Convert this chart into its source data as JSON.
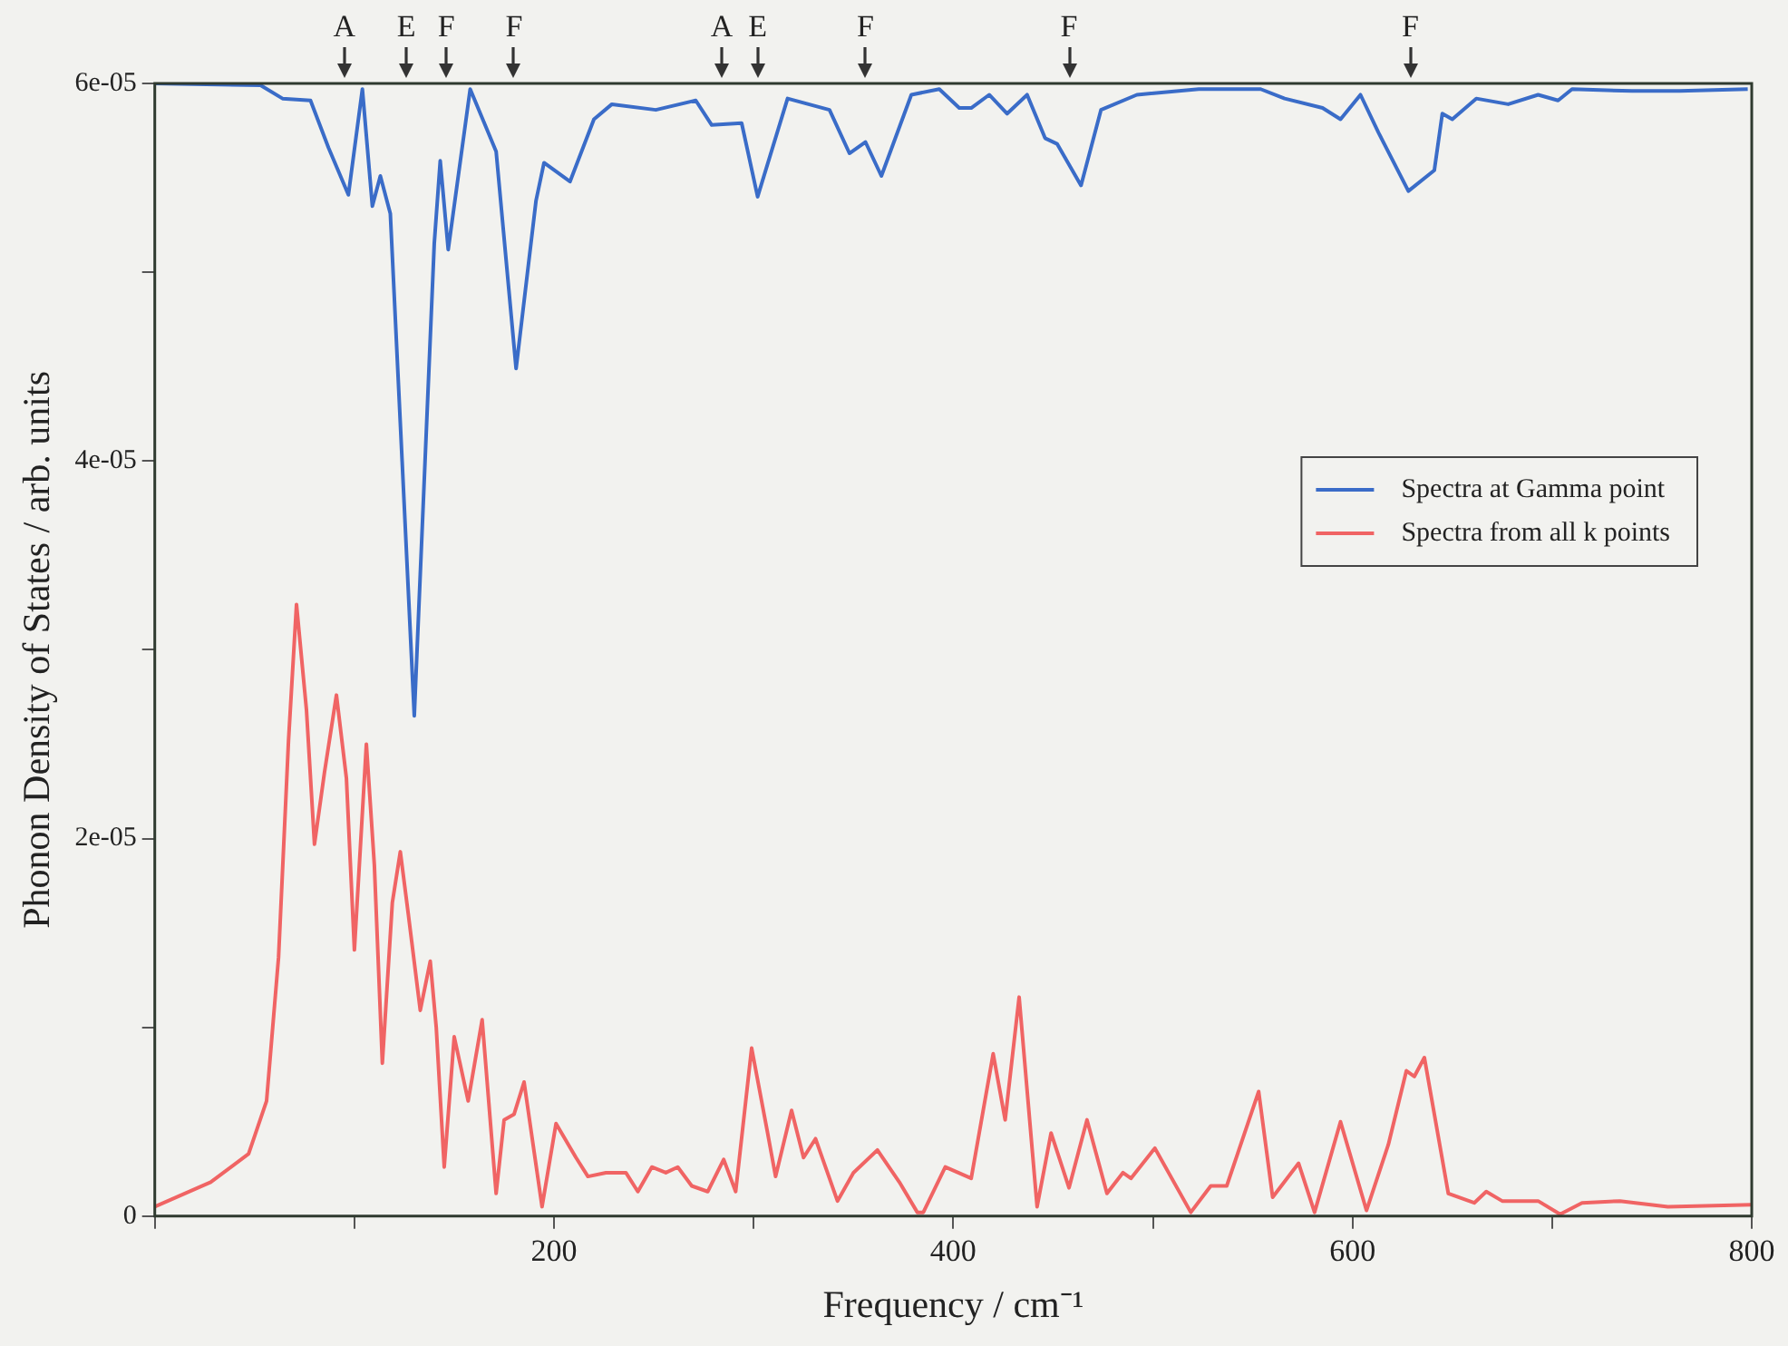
{
  "chart_data": {
    "type": "line",
    "xlabel": "Frequency / cm⁻¹",
    "ylabel": "Phonon Density of States / arb. units",
    "xlim": [
      0,
      800
    ],
    "xticks": [
      {
        "value": 0,
        "label": null
      },
      {
        "value": 100,
        "label": null
      },
      200,
      {
        "value": 300,
        "label": null
      },
      400,
      {
        "value": 500,
        "label": null
      },
      600,
      {
        "value": 700,
        "label": null
      },
      800
    ],
    "ylim": [
      0,
      6e-05
    ],
    "yticks": [
      0,
      {
        "value": 1e-05,
        "label": null
      },
      {
        "value": 2e-05,
        "label": "2e-05"
      },
      {
        "value": 3e-05,
        "label": null
      },
      {
        "value": 4e-05,
        "label": "4e-05"
      },
      {
        "value": 5e-05,
        "label": null
      },
      {
        "value": 6e-05,
        "label": "6e-05"
      }
    ],
    "grid": false,
    "legend": "right",
    "marker": "none",
    "line_style": "solid",
    "annotations": [
      {
        "text": "A",
        "x": 95
      },
      {
        "text": "E",
        "x": 126
      },
      {
        "text": "F",
        "x": 146
      },
      {
        "text": "F",
        "x": 180
      },
      {
        "text": "A",
        "x": 284
      },
      {
        "text": "E",
        "x": 302
      },
      {
        "text": "F",
        "x": 356
      },
      {
        "text": "F",
        "x": 458
      },
      {
        "text": "F",
        "x": 629
      }
    ],
    "series": [
      {
        "name": "Spectra at Gamma point",
        "color": "#3a6cc8",
        "x": [
          0,
          53,
          64,
          78,
          87,
          97,
          104,
          109,
          113,
          118,
          130,
          140,
          143,
          147,
          158,
          171,
          181,
          191,
          195,
          208,
          220,
          229,
          251,
          271,
          279,
          294,
          302,
          317,
          338,
          348,
          356,
          364,
          379,
          393,
          403,
          409,
          418,
          427,
          437,
          446,
          452,
          464,
          474,
          492,
          523,
          554,
          566,
          585,
          594,
          604,
          613,
          628,
          641,
          645,
          650,
          662,
          678,
          693,
          703,
          710,
          740,
          764,
          798
        ],
        "values": [
          6e-05,
          5.99e-05,
          5.92e-05,
          5.91e-05,
          5.66e-05,
          5.41e-05,
          5.97e-05,
          5.35e-05,
          5.51e-05,
          5.31e-05,
          2.65e-05,
          5.15e-05,
          5.59e-05,
          5.12e-05,
          5.97e-05,
          5.64e-05,
          4.49e-05,
          5.38e-05,
          5.58e-05,
          5.48e-05,
          5.81e-05,
          5.89e-05,
          5.86e-05,
          5.91e-05,
          5.78e-05,
          5.79e-05,
          5.4e-05,
          5.92e-05,
          5.86e-05,
          5.63e-05,
          5.69e-05,
          5.51e-05,
          5.94e-05,
          5.97e-05,
          5.87e-05,
          5.87e-05,
          5.94e-05,
          5.84e-05,
          5.94e-05,
          5.71e-05,
          5.68e-05,
          5.46e-05,
          5.86e-05,
          5.94e-05,
          5.97e-05,
          5.97e-05,
          5.92e-05,
          5.87e-05,
          5.81e-05,
          5.94e-05,
          5.74e-05,
          5.43e-05,
          5.54e-05,
          5.84e-05,
          5.81e-05,
          5.92e-05,
          5.89e-05,
          5.94e-05,
          5.91e-05,
          5.97e-05,
          5.96e-05,
          5.96e-05,
          5.97e-05
        ]
      },
      {
        "name": "Spectra from all k points",
        "color": "#f06464",
        "x": [
          0,
          28,
          47,
          56,
          62,
          67,
          71,
          76,
          80,
          85,
          91,
          96,
          100,
          106,
          110,
          114,
          119,
          123,
          127,
          133,
          138,
          141,
          145,
          150,
          157,
          164,
          171,
          175,
          180,
          185,
          194,
          201,
          211,
          217,
          226,
          236,
          242,
          249,
          256,
          262,
          269,
          277,
          285,
          291,
          299,
          307,
          311,
          319,
          325,
          331,
          342,
          350,
          362,
          373,
          382,
          385,
          396,
          409,
          420,
          426,
          433,
          442,
          449,
          458,
          467,
          477,
          485,
          489,
          501,
          519,
          529,
          537,
          553,
          560,
          573,
          581,
          594,
          607,
          618,
          627,
          631,
          636,
          648,
          661,
          667,
          675,
          693,
          704,
          715,
          734,
          758,
          800
        ],
        "values": [
          5e-07,
          1.8e-06,
          3.3e-06,
          6.1e-06,
          1.37e-05,
          2.52e-05,
          3.24e-05,
          2.68e-05,
          1.97e-05,
          2.35e-05,
          2.76e-05,
          2.32e-05,
          1.41e-05,
          2.5e-05,
          1.86e-05,
          8.1e-06,
          1.66e-05,
          1.93e-05,
          1.6e-05,
          1.09e-05,
          1.35e-05,
          1e-05,
          2.6e-06,
          9.5e-06,
          6.1e-06,
          1.04e-05,
          1.2e-06,
          5.1e-06,
          5.4e-06,
          7.1e-06,
          5e-07,
          4.9e-06,
          3.1e-06,
          2.1e-06,
          2.3e-06,
          2.3e-06,
          1.3e-06,
          2.6e-06,
          2.3e-06,
          2.6e-06,
          1.6e-06,
          1.3e-06,
          3e-06,
          1.3e-06,
          8.9e-06,
          4.4e-06,
          2.1e-06,
          5.6e-06,
          3.1e-06,
          4.1e-06,
          8e-07,
          2.3e-06,
          3.5e-06,
          1.8e-06,
          2e-07,
          2e-07,
          2.6e-06,
          2e-06,
          8.6e-06,
          5.1e-06,
          1.16e-05,
          5e-07,
          4.4e-06,
          1.5e-06,
          5.1e-06,
          1.2e-06,
          2.3e-06,
          2e-06,
          3.6e-06,
          2e-07,
          1.6e-06,
          1.6e-06,
          6.6e-06,
          1e-06,
          2.8e-06,
          2e-07,
          5e-06,
          3e-07,
          3.8e-06,
          7.7e-06,
          7.4e-06,
          8.4e-06,
          1.2e-06,
          7e-07,
          1.3e-06,
          8e-07,
          8e-07,
          1e-07,
          7e-07,
          8e-07,
          5e-07,
          6e-07
        ]
      }
    ]
  }
}
